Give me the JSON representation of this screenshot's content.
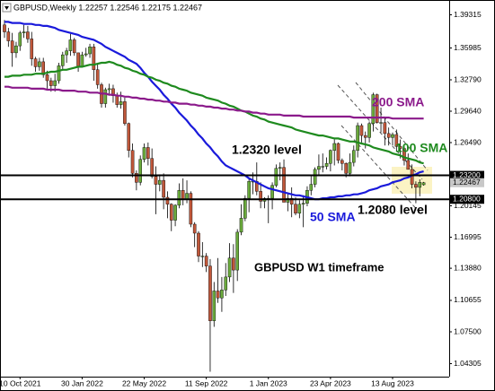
{
  "chart_data": {
    "type": "candlestick",
    "title": "GBPUSD,Weekly 1.22257 1.22546 1.22175 1.22467",
    "up_color": "#6aaa3c",
    "down_color": "#c0573a",
    "ylim": [
      1.03,
      1.408
    ],
    "yticks": [
      1.39315,
      1.35985,
      {
        "value": 1.3279,
        "label": "1.32790"
      },
      {
        "value": 1.2964,
        "label": "1.29640"
      },
      {
        "value": 1.2649,
        "label": "1.26490"
      },
      1.20145,
      1.16995,
      {
        "value": 1.1388,
        "label": "1.13880"
      },
      1.10655,
      {
        "value": 1.075,
        "label": "1.07500"
      },
      1.04305
    ],
    "levels": [
      {
        "value": 1.232,
        "label": "1.23200"
      },
      {
        "value": 1.208,
        "label": "1.20800"
      }
    ],
    "current_price": 1.22467,
    "categories": [
      null,
      null,
      null,
      null,
      "10 Oct 2021",
      null,
      null,
      null,
      null,
      null,
      null,
      null,
      null,
      null,
      null,
      null,
      null,
      null,
      null,
      null,
      "30 Jan 2022",
      null,
      null,
      null,
      null,
      null,
      null,
      null,
      null,
      null,
      null,
      null,
      null,
      null,
      null,
      null,
      "22 May 2022",
      null,
      null,
      null,
      null,
      null,
      null,
      null,
      null,
      null,
      null,
      null,
      null,
      null,
      null,
      null,
      "11 Sep 2022",
      null,
      null,
      null,
      null,
      null,
      null,
      null,
      null,
      null,
      null,
      null,
      null,
      null,
      null,
      null,
      "1 Jan 2023",
      null,
      null,
      null,
      null,
      null,
      null,
      null,
      null,
      null,
      null,
      null,
      null,
      null,
      null,
      null,
      "23 Apr 2023",
      null,
      null,
      null,
      null,
      null,
      null,
      null,
      null,
      null,
      null,
      null,
      null,
      null,
      null,
      null,
      "13 Aug 2023",
      null,
      null,
      null,
      null,
      null,
      null,
      null,
      null
    ],
    "candles": [
      [
        1.383,
        1.388,
        1.37,
        1.376
      ],
      [
        1.376,
        1.38,
        1.361,
        1.367
      ],
      [
        1.367,
        1.375,
        1.341,
        1.355
      ],
      [
        1.355,
        1.366,
        1.35,
        1.362
      ],
      [
        1.362,
        1.377,
        1.357,
        1.375
      ],
      [
        1.375,
        1.383,
        1.37,
        1.376
      ],
      [
        1.376,
        1.382,
        1.365,
        1.369
      ],
      [
        1.369,
        1.376,
        1.342,
        1.349
      ],
      [
        1.349,
        1.351,
        1.336,
        1.341
      ],
      [
        1.341,
        1.35,
        1.337,
        1.346
      ],
      [
        1.346,
        1.35,
        1.33,
        1.333
      ],
      [
        1.333,
        1.337,
        1.319,
        1.327
      ],
      [
        1.327,
        1.33,
        1.316,
        1.322
      ],
      [
        1.322,
        1.334,
        1.316,
        1.327
      ],
      [
        1.327,
        1.345,
        1.324,
        1.342
      ],
      [
        1.342,
        1.356,
        1.338,
        1.353
      ],
      [
        1.353,
        1.36,
        1.345,
        1.357
      ],
      [
        1.357,
        1.374,
        1.352,
        1.368
      ],
      [
        1.368,
        1.37,
        1.352,
        1.355
      ],
      [
        1.355,
        1.355,
        1.336,
        1.341
      ],
      [
        1.341,
        1.356,
        1.34,
        1.353
      ],
      [
        1.353,
        1.36,
        1.351,
        1.354
      ],
      [
        1.354,
        1.364,
        1.35,
        1.361
      ],
      [
        1.361,
        1.364,
        1.327,
        1.338
      ],
      [
        1.338,
        1.345,
        1.319,
        1.323
      ],
      [
        1.323,
        1.325,
        1.3,
        1.304
      ],
      [
        1.304,
        1.32,
        1.3,
        1.318
      ],
      [
        1.318,
        1.324,
        1.314,
        1.319
      ],
      [
        1.319,
        1.323,
        1.305,
        1.312
      ],
      [
        1.312,
        1.315,
        1.3,
        1.303
      ],
      [
        1.303,
        1.316,
        1.299,
        1.306
      ],
      [
        1.306,
        1.31,
        1.282,
        1.284
      ],
      [
        1.284,
        1.285,
        1.25,
        1.257
      ],
      [
        1.257,
        1.264,
        1.23,
        1.234
      ],
      [
        1.234,
        1.237,
        1.217,
        1.225
      ],
      [
        1.225,
        1.252,
        1.222,
        1.248
      ],
      [
        1.248,
        1.264,
        1.245,
        1.26
      ],
      [
        1.26,
        1.265,
        1.242,
        1.249
      ],
      [
        1.249,
        1.259,
        1.229,
        1.231
      ],
      [
        1.231,
        1.241,
        1.193,
        1.223
      ],
      [
        1.223,
        1.233,
        1.216,
        1.227
      ],
      [
        1.227,
        1.234,
        1.198,
        1.21
      ],
      [
        1.21,
        1.216,
        1.189,
        1.203
      ],
      [
        1.203,
        1.204,
        1.176,
        1.187
      ],
      [
        1.187,
        1.203,
        1.181,
        1.202
      ],
      [
        1.202,
        1.224,
        1.199,
        1.217
      ],
      [
        1.217,
        1.229,
        1.202,
        1.208
      ],
      [
        1.208,
        1.227,
        1.204,
        1.214
      ],
      [
        1.214,
        1.216,
        1.18,
        1.183
      ],
      [
        1.183,
        1.185,
        1.16,
        1.174
      ],
      [
        1.174,
        1.176,
        1.145,
        1.151
      ],
      [
        1.151,
        1.165,
        1.14,
        1.151
      ],
      [
        1.151,
        1.154,
        1.135,
        1.141
      ],
      [
        1.141,
        1.148,
        1.035,
        1.086
      ],
      [
        1.086,
        1.125,
        1.08,
        1.116
      ],
      [
        1.116,
        1.149,
        1.104,
        1.109
      ],
      [
        1.109,
        1.13,
        1.095,
        1.117
      ],
      [
        1.117,
        1.144,
        1.111,
        1.13
      ],
      [
        1.13,
        1.164,
        1.125,
        1.149
      ],
      [
        1.149,
        1.163,
        1.114,
        1.137
      ],
      [
        1.137,
        1.178,
        1.126,
        1.175
      ],
      [
        1.175,
        1.203,
        1.172,
        1.189
      ],
      [
        1.189,
        1.212,
        1.186,
        1.209
      ],
      [
        1.209,
        1.228,
        1.195,
        1.226
      ],
      [
        1.226,
        1.235,
        1.213,
        1.226
      ],
      [
        1.226,
        1.245,
        1.212,
        1.216
      ],
      [
        1.216,
        1.225,
        1.199,
        1.206
      ],
      [
        1.206,
        1.21,
        1.199,
        1.209
      ],
      [
        1.209,
        1.212,
        1.184,
        1.209
      ],
      [
        1.209,
        1.225,
        1.198,
        1.222
      ],
      [
        1.222,
        1.243,
        1.22,
        1.239
      ],
      [
        1.239,
        1.245,
        1.227,
        1.24
      ],
      [
        1.24,
        1.248,
        1.205,
        1.205
      ],
      [
        1.205,
        1.215,
        1.196,
        1.209
      ],
      [
        1.209,
        1.22,
        1.19,
        1.203
      ],
      [
        1.203,
        1.21,
        1.192,
        1.194
      ],
      [
        1.194,
        1.207,
        1.189,
        1.203
      ],
      [
        1.203,
        1.212,
        1.18,
        1.204
      ],
      [
        1.204,
        1.221,
        1.201,
        1.217
      ],
      [
        1.217,
        1.232,
        1.212,
        1.223
      ],
      [
        1.223,
        1.24,
        1.22,
        1.238
      ],
      [
        1.238,
        1.253,
        1.233,
        1.241
      ],
      [
        1.241,
        1.254,
        1.235,
        1.241
      ],
      [
        1.241,
        1.25,
        1.238,
        1.244
      ],
      [
        1.244,
        1.258,
        1.236,
        1.257
      ],
      [
        1.257,
        1.268,
        1.242,
        1.264
      ],
      [
        1.264,
        1.265,
        1.244,
        1.247
      ],
      [
        1.247,
        1.249,
        1.237,
        1.244
      ],
      [
        1.244,
        1.245,
        1.23,
        1.234
      ],
      [
        1.234,
        1.254,
        1.231,
        1.245
      ],
      [
        1.245,
        1.262,
        1.241,
        1.257
      ],
      [
        1.257,
        1.285,
        1.25,
        1.282
      ],
      [
        1.282,
        1.284,
        1.265,
        1.272
      ],
      [
        1.272,
        1.276,
        1.259,
        1.27
      ],
      [
        1.27,
        1.286,
        1.265,
        1.284
      ],
      [
        1.284,
        1.315,
        1.276,
        1.313
      ],
      [
        1.313,
        1.314,
        1.284,
        1.285
      ],
      [
        1.285,
        1.3,
        1.275,
        1.285
      ],
      [
        1.285,
        1.29,
        1.262,
        1.274
      ],
      [
        1.274,
        1.28,
        1.262,
        1.27
      ],
      [
        1.27,
        1.275,
        1.262,
        1.273
      ],
      [
        1.273,
        1.278,
        1.256,
        1.261
      ],
      [
        1.261,
        1.268,
        1.249,
        1.259
      ],
      [
        1.259,
        1.261,
        1.242,
        1.247
      ],
      [
        1.247,
        1.254,
        1.238,
        1.238
      ],
      [
        1.238,
        1.243,
        1.219,
        1.223
      ],
      [
        1.223,
        1.226,
        1.204,
        1.22
      ],
      [
        1.22,
        1.228,
        1.211,
        1.225
      ],
      [
        1.22257,
        1.22546,
        1.22175,
        1.22467
      ]
    ],
    "series": [
      {
        "color": "#1a1adb",
        "values": [
          1.386,
          1.386,
          1.385,
          1.385,
          1.385,
          1.384,
          1.384,
          1.384,
          1.383,
          1.383,
          1.382,
          1.382,
          1.381,
          1.38,
          1.378,
          1.377,
          1.376,
          1.375,
          1.374,
          1.373,
          1.371,
          1.37,
          1.369,
          1.368,
          1.366,
          1.364,
          1.361,
          1.359,
          1.357,
          1.355,
          1.353,
          1.351,
          1.348,
          1.346,
          1.344,
          1.34,
          1.335,
          1.331,
          1.326,
          1.322,
          1.318,
          1.313,
          1.309,
          1.304,
          1.3,
          1.295,
          1.291,
          1.287,
          1.282,
          1.278,
          1.273,
          1.269,
          1.264,
          1.26,
          1.255,
          1.251,
          1.246,
          1.242,
          1.24,
          1.238,
          1.236,
          1.234,
          1.232,
          1.229,
          1.227,
          1.225,
          1.223,
          1.221,
          1.219,
          1.218,
          1.217,
          1.216,
          1.215,
          1.214,
          1.213,
          1.212,
          1.212,
          1.211,
          1.21,
          1.209,
          1.208,
          1.208,
          1.209,
          1.209,
          1.21,
          1.21,
          1.211,
          1.211,
          1.212,
          1.212,
          1.213,
          1.213,
          1.214,
          1.215,
          1.217,
          1.218,
          1.219,
          1.221,
          1.222,
          1.223,
          1.225,
          1.226,
          1.227,
          1.229,
          1.23,
          1.232,
          1.233,
          1.235,
          1.236
        ]
      },
      {
        "color": "#1e8a1e",
        "values": [
          1.331,
          1.331,
          1.332,
          1.332,
          1.332,
          1.333,
          1.333,
          1.333,
          1.334,
          1.334,
          1.334,
          1.335,
          1.336,
          1.336,
          1.337,
          1.338,
          1.338,
          1.339,
          1.34,
          1.341,
          1.341,
          1.342,
          1.343,
          1.343,
          1.344,
          1.345,
          1.345,
          1.346,
          1.345,
          1.343,
          1.342,
          1.34,
          1.339,
          1.337,
          1.336,
          1.334,
          1.333,
          1.331,
          1.33,
          1.328,
          1.327,
          1.325,
          1.324,
          1.322,
          1.321,
          1.319,
          1.318,
          1.317,
          1.315,
          1.314,
          1.313,
          1.312,
          1.31,
          1.309,
          1.308,
          1.307,
          1.305,
          1.304,
          1.302,
          1.301,
          1.299,
          1.297,
          1.296,
          1.294,
          1.292,
          1.291,
          1.289,
          1.288,
          1.286,
          1.285,
          1.284,
          1.283,
          1.282,
          1.281,
          1.28,
          1.278,
          1.277,
          1.276,
          1.275,
          1.274,
          1.273,
          1.272,
          1.272,
          1.271,
          1.27,
          1.269,
          1.269,
          1.268,
          1.267,
          1.266,
          1.266,
          1.265,
          1.264,
          1.263,
          1.262,
          1.26,
          1.259,
          1.258,
          1.257,
          1.256,
          1.254,
          1.253,
          1.252,
          1.25,
          1.249,
          1.248,
          1.247,
          1.245,
          1.244
        ]
      },
      {
        "color": "#8b1a8b",
        "values": [
          1.321,
          1.321,
          1.32,
          1.32,
          1.32,
          1.32,
          1.32,
          1.319,
          1.319,
          1.319,
          1.319,
          1.318,
          1.318,
          1.318,
          1.318,
          1.317,
          1.317,
          1.317,
          1.317,
          1.316,
          1.316,
          1.316,
          1.315,
          1.315,
          1.315,
          1.314,
          1.314,
          1.313,
          1.313,
          1.312,
          1.312,
          1.311,
          1.311,
          1.31,
          1.31,
          1.309,
          1.309,
          1.308,
          1.308,
          1.307,
          1.307,
          1.306,
          1.306,
          1.305,
          1.305,
          1.304,
          1.304,
          1.304,
          1.303,
          1.303,
          1.302,
          1.302,
          1.301,
          1.301,
          1.3,
          1.3,
          1.299,
          1.299,
          1.298,
          1.298,
          1.297,
          1.297,
          1.296,
          1.296,
          1.295,
          1.295,
          1.294,
          1.294,
          1.293,
          1.293,
          1.293,
          1.293,
          1.292,
          1.292,
          1.292,
          1.292,
          1.292,
          1.291,
          1.291,
          1.291,
          1.291,
          1.291,
          1.291,
          1.291,
          1.291,
          1.291,
          1.291,
          1.291,
          1.291,
          1.291,
          1.29,
          1.29,
          1.29,
          1.29,
          1.29,
          1.29,
          1.29,
          1.29,
          1.29,
          1.29,
          1.289,
          1.289,
          1.289,
          1.289,
          1.289,
          1.289,
          1.289,
          1.289,
          1.289
        ]
      }
    ],
    "annotations": [
      {
        "text": "1.2320 level",
        "color": "#000000"
      },
      {
        "text": "100 SMA",
        "color": "#1e8a1e"
      },
      {
        "text": "200 SMA",
        "color": "#8b1a8b"
      },
      {
        "text": "50 SMA",
        "color": "#1a1adb"
      },
      {
        "text": "1.2080 level",
        "color": "#000000"
      },
      {
        "text": "GBPUSD W1 timeframe",
        "color": "#000000"
      }
    ]
  }
}
